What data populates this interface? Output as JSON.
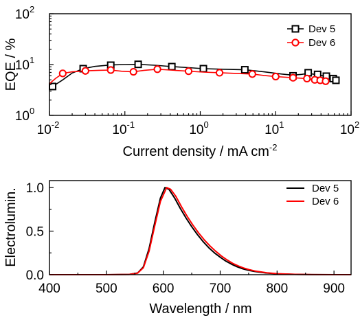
{
  "chart_data": [
    {
      "type": "line",
      "xlabel": "Current density / mA cm",
      "xlabel_sup": "-2",
      "ylabel": "EQE / %",
      "x_scale": "log",
      "y_scale": "log",
      "xlim": [
        0.01,
        100
      ],
      "ylim": [
        1,
        100
      ],
      "x_ticks": [
        {
          "value": 0.01,
          "base": "10",
          "exp": "-2"
        },
        {
          "value": 0.1,
          "base": "10",
          "exp": "-1"
        },
        {
          "value": 1,
          "base": "10",
          "exp": "0"
        },
        {
          "value": 10,
          "base": "10",
          "exp": "1"
        },
        {
          "value": 100,
          "base": "10",
          "exp": "2"
        }
      ],
      "y_ticks": [
        {
          "value": 1,
          "base": "10",
          "exp": "0"
        },
        {
          "value": 10,
          "base": "10",
          "exp": "1"
        },
        {
          "value": 100,
          "base": "10",
          "exp": "2"
        }
      ],
      "legend_position": "top-right",
      "series": [
        {
          "name": "Dev 5",
          "color": "#000000",
          "marker": "square",
          "x": [
            0.011,
            0.028,
            0.065,
            0.15,
            0.42,
            1.1,
            3.9,
            17,
            27,
            36,
            47,
            58,
            63
          ],
          "y": [
            3.7,
            8.3,
            9.7,
            10.1,
            9.1,
            8.3,
            7.9,
            6.0,
            6.9,
            6.4,
            5.9,
            5.3,
            4.9
          ],
          "curve_x": [
            0.01,
            0.011,
            0.015,
            0.02,
            0.028,
            0.04,
            0.065,
            0.1,
            0.15,
            0.25,
            0.42,
            0.7,
            1.1,
            2,
            3.9,
            7,
            12,
            17,
            22,
            27,
            36,
            47,
            58,
            63
          ],
          "curve_y": [
            3.3,
            3.7,
            5.0,
            6.8,
            8.3,
            9.2,
            9.8,
            10.0,
            10.1,
            9.7,
            9.1,
            8.7,
            8.3,
            8.1,
            7.9,
            7.2,
            6.5,
            6.2,
            6.4,
            6.7,
            6.3,
            5.8,
            5.2,
            4.9
          ]
        },
        {
          "name": "Dev 6",
          "color": "#ff0000",
          "marker": "circle",
          "x": [
            0.015,
            0.03,
            0.065,
            0.13,
            0.27,
            0.7,
            1.8,
            4.9,
            10,
            17,
            26,
            33,
            39,
            46
          ],
          "y": [
            6.7,
            7.5,
            7.8,
            7.2,
            8.1,
            7.4,
            6.9,
            6.5,
            5.8,
            5.5,
            5.3,
            5.0,
            4.9,
            4.7
          ],
          "curve_x": [
            0.01,
            0.012,
            0.015,
            0.02,
            0.03,
            0.045,
            0.065,
            0.09,
            0.13,
            0.18,
            0.27,
            0.4,
            0.7,
            1.1,
            1.8,
            3,
            4.9,
            7,
            10,
            17,
            26,
            33,
            39,
            46,
            50
          ],
          "curve_y": [
            4.2,
            5.3,
            6.7,
            7.2,
            7.5,
            7.7,
            7.8,
            7.4,
            7.2,
            7.7,
            8.1,
            7.8,
            7.4,
            7.1,
            6.9,
            6.7,
            6.5,
            6.1,
            5.8,
            5.5,
            5.3,
            5.0,
            4.9,
            4.7,
            4.6
          ]
        }
      ]
    },
    {
      "type": "line",
      "xlabel": "Wavelength / nm",
      "ylabel": "Electrolumin.",
      "xlim": [
        400,
        930
      ],
      "ylim": [
        0,
        1.08
      ],
      "x_ticks": [
        400,
        500,
        600,
        700,
        800,
        900
      ],
      "y_ticks": [
        {
          "value": 0,
          "label": "0.0"
        },
        {
          "value": 0.5,
          "label": "0.5"
        },
        {
          "value": 1.0,
          "label": "1.0"
        }
      ],
      "legend_position": "top-right",
      "series": [
        {
          "name": "Dev 5",
          "color": "#000000",
          "x": [
            400,
            500,
            540,
            555,
            565,
            575,
            585,
            595,
            603,
            610,
            620,
            630,
            640,
            650,
            660,
            670,
            680,
            690,
            700,
            710,
            720,
            730,
            740,
            750,
            760,
            780,
            800,
            830,
            860,
            900,
            930
          ],
          "y": [
            0,
            0,
            0.003,
            0.02,
            0.09,
            0.3,
            0.6,
            0.88,
            1.0,
            0.98,
            0.88,
            0.76,
            0.65,
            0.55,
            0.46,
            0.38,
            0.31,
            0.25,
            0.2,
            0.155,
            0.12,
            0.09,
            0.067,
            0.05,
            0.037,
            0.02,
            0.01,
            0.004,
            0.001,
            0,
            0
          ]
        },
        {
          "name": "Dev 6",
          "color": "#ff0000",
          "x": [
            400,
            500,
            540,
            555,
            565,
            575,
            585,
            595,
            606,
            613,
            622,
            632,
            642,
            652,
            662,
            672,
            682,
            692,
            702,
            712,
            722,
            732,
            742,
            752,
            762,
            782,
            802,
            832,
            862,
            900,
            930
          ],
          "y": [
            0,
            0,
            0.003,
            0.018,
            0.08,
            0.27,
            0.56,
            0.84,
            1.0,
            0.98,
            0.9,
            0.78,
            0.67,
            0.57,
            0.48,
            0.4,
            0.33,
            0.27,
            0.215,
            0.17,
            0.13,
            0.1,
            0.075,
            0.056,
            0.041,
            0.022,
            0.011,
            0.004,
            0.001,
            0,
            0
          ]
        }
      ]
    }
  ]
}
